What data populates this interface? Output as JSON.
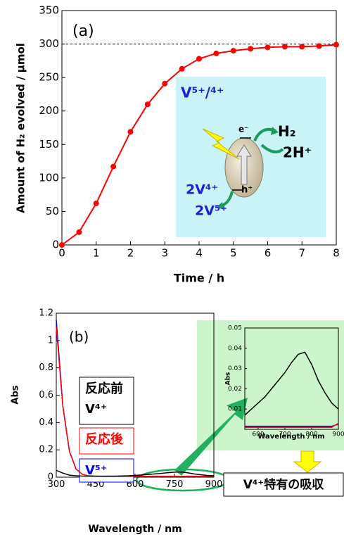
{
  "chart_data": [
    {
      "type": "line",
      "title": "(a)",
      "x_label": "Time / h",
      "y_label": "Amount of H₂ evolved / μmol",
      "x": [
        0,
        0.5,
        1,
        1.5,
        2,
        2.5,
        3,
        3.5,
        4,
        4.5,
        5,
        5.5,
        6,
        6.5,
        7,
        7.5,
        8
      ],
      "series": [
        {
          "color": "#ff0000",
          "values": [
            0,
            19,
            62,
            117,
            169,
            210,
            241,
            263,
            278,
            286,
            290,
            293,
            295,
            296,
            296,
            297,
            299
          ]
        }
      ],
      "xlim": [
        0,
        8
      ],
      "xticks": [
        0,
        1,
        2,
        3,
        4,
        5,
        6,
        7,
        8
      ],
      "ylim": [
        0,
        350
      ],
      "yticks": [
        0,
        50,
        100,
        150,
        200,
        250,
        300,
        350
      ],
      "reference_line": 300,
      "markers": true,
      "diagram_labels": [
        "V⁵⁺/⁴⁺",
        "H₂",
        "2H⁺",
        "e⁻",
        "h⁺",
        "2V⁴⁺",
        "2V⁵⁺"
      ]
    },
    {
      "type": "line",
      "title": "(b)",
      "x_label": "Wavelength / nm",
      "y_label": "Abs",
      "x": [
        300,
        325,
        350,
        375,
        400,
        425,
        450,
        475,
        500,
        525,
        550,
        575,
        600,
        625,
        650,
        675,
        700,
        725,
        750,
        775,
        800,
        825,
        850,
        875,
        900
      ],
      "series": [
        {
          "name": [
            "反応前",
            "V⁴⁺"
          ],
          "color": "#000000",
          "values": [
            0.05,
            0.03,
            0.015,
            0.01,
            0.008,
            0.007,
            0.007,
            0.007,
            0.008,
            0.008,
            0.009,
            0.01,
            0.013,
            0.016,
            0.02,
            0.024,
            0.028,
            0.033,
            0.037,
            0.038,
            0.032,
            0.024,
            0.018,
            0.013,
            0.01
          ]
        },
        {
          "name": [
            "反応後"
          ],
          "color": "#ff0000",
          "values": [
            1.1,
            0.52,
            0.19,
            0.06,
            0.02,
            0.01,
            0.008,
            0.006,
            0.006,
            0.006,
            0.006,
            0.006,
            0.006,
            0.006,
            0.006,
            0.006,
            0.006,
            0.006,
            0.006,
            0.006,
            0.006,
            0.006,
            0.006,
            0.006,
            0.006
          ]
        },
        {
          "name": [
            "V⁵⁺"
          ],
          "color": "#0000ff",
          "values": [
            1.15,
            0.52,
            0.19,
            0.06,
            0.02,
            0.01,
            0.006,
            0.005,
            0.005,
            0.005,
            0.005,
            0.005,
            0.005,
            0.005,
            0.005,
            0.005,
            0.005,
            0.005,
            0.005,
            0.005,
            0.005,
            0.005,
            0.005,
            0.005,
            0.005
          ]
        }
      ],
      "xlim": [
        300,
        900
      ],
      "xticks": [
        300,
        450,
        600,
        750,
        900
      ],
      "ylim": [
        0,
        1.2
      ],
      "yticks": [
        0,
        0.2,
        0.4,
        0.6,
        0.8,
        1,
        1.2
      ],
      "annotation": "V⁴⁺特有の吸収"
    },
    {
      "type": "line",
      "x_label": "Wavelength / nm",
      "y_label": "Abs",
      "x": [
        550,
        575,
        600,
        625,
        650,
        675,
        700,
        725,
        750,
        775,
        800,
        825,
        850,
        875,
        900
      ],
      "series": [
        {
          "color": "#000000",
          "values": [
            0.007,
            0.01,
            0.013,
            0.016,
            0.02,
            0.024,
            0.028,
            0.033,
            0.037,
            0.038,
            0.032,
            0.024,
            0.018,
            0.013,
            0.01
          ]
        },
        {
          "color": "#ff0000",
          "values": [
            0.001,
            0.001,
            0.001,
            0.001,
            0.001,
            0.001,
            0.001,
            0.001,
            0.001,
            0.001,
            0.001,
            0.001,
            0.001,
            0.001,
            0.003
          ]
        },
        {
          "color": "#0000ff",
          "values": [
            0.0015,
            0.0015,
            0.0015,
            0.0015,
            0.0015,
            0.0015,
            0.0015,
            0.0015,
            0.0015,
            0.0015,
            0.0015,
            0.0015,
            0.0015,
            0.0015,
            0.0025
          ]
        }
      ],
      "xlim": [
        550,
        900
      ],
      "xticks": [
        600,
        700,
        800,
        900
      ],
      "ylim": [
        0,
        0.05
      ],
      "yticks": [
        0.01,
        0.02,
        0.03,
        0.04,
        0.05
      ]
    }
  ]
}
